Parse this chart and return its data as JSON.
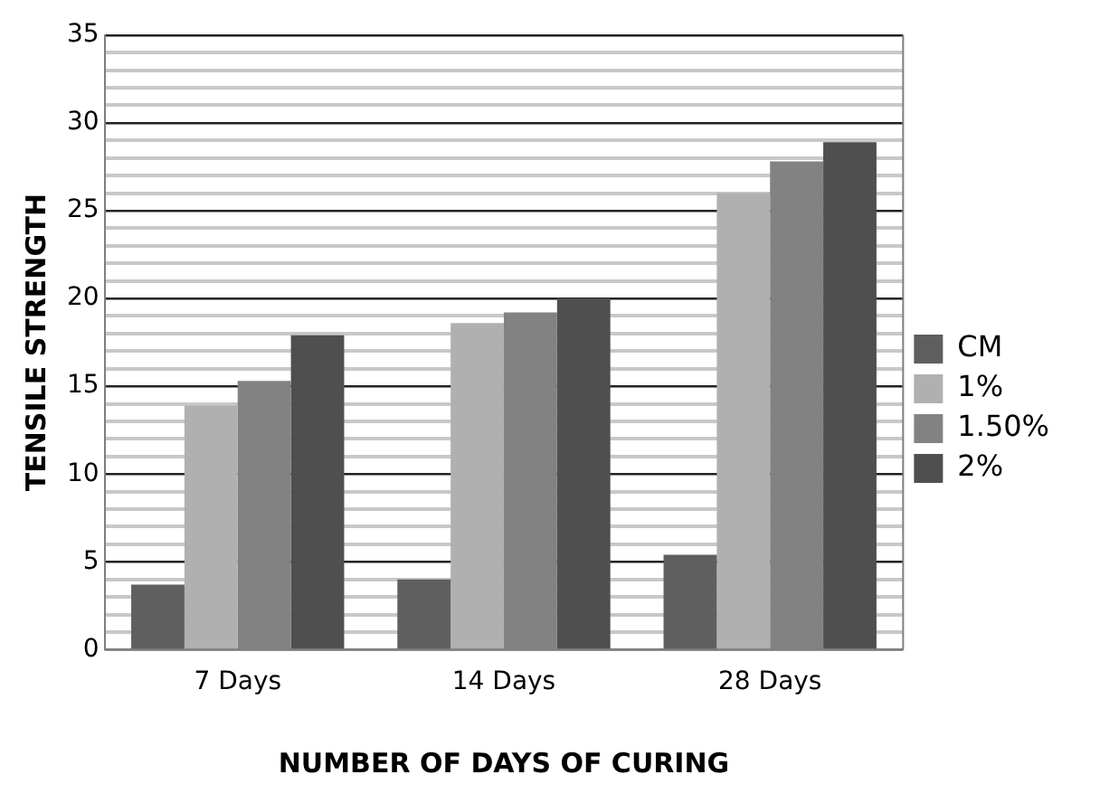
{
  "chart_data": {
    "type": "bar",
    "xlabel": "NUMBER OF DAYS OF CURING",
    "ylabel": "TENSILE STRENGTH",
    "categories": [
      "7 Days",
      "14 Days",
      "28 Days"
    ],
    "series": [
      {
        "name": "CM",
        "color": "#5f5f5f",
        "values": [
          3.7,
          4.0,
          5.4
        ]
      },
      {
        "name": "1%",
        "color": "#b0b0b0",
        "values": [
          13.9,
          18.6,
          26.0
        ]
      },
      {
        "name": "1.50%",
        "color": "#828282",
        "values": [
          15.3,
          19.2,
          27.8
        ]
      },
      {
        "name": "2%",
        "color": "#4f4f4f",
        "values": [
          17.9,
          20.0,
          28.9
        ]
      }
    ],
    "ylim": [
      0,
      35
    ],
    "yticks": [
      0,
      {
        "value": 1,
        "label": null
      },
      {
        "value": 2,
        "label": null
      },
      {
        "value": 3,
        "label": null
      },
      {
        "value": 4,
        "label": null
      },
      5,
      {
        "value": 6,
        "label": null
      },
      {
        "value": 7,
        "label": null
      },
      {
        "value": 8,
        "label": null
      },
      {
        "value": 9,
        "label": null
      },
      10,
      {
        "value": 11,
        "label": null
      },
      {
        "value": 12,
        "label": null
      },
      {
        "value": 13,
        "label": null
      },
      {
        "value": 14,
        "label": null
      },
      15,
      {
        "value": 16,
        "label": null
      },
      {
        "value": 17,
        "label": null
      },
      {
        "value": 18,
        "label": null
      },
      {
        "value": 19,
        "label": null
      },
      20,
      {
        "value": 21,
        "label": null
      },
      {
        "value": 22,
        "label": null
      },
      {
        "value": 23,
        "label": null
      },
      {
        "value": 24,
        "label": null
      },
      25,
      {
        "value": 26,
        "label": null
      },
      {
        "value": 27,
        "label": null
      },
      {
        "value": 28,
        "label": null
      },
      {
        "value": 29,
        "label": null
      },
      30,
      {
        "value": 31,
        "label": null
      },
      {
        "value": 32,
        "label": null
      },
      {
        "value": 33,
        "label": null
      },
      {
        "value": 34,
        "label": null
      },
      35
    ],
    "grid": "y",
    "legend": "right"
  }
}
